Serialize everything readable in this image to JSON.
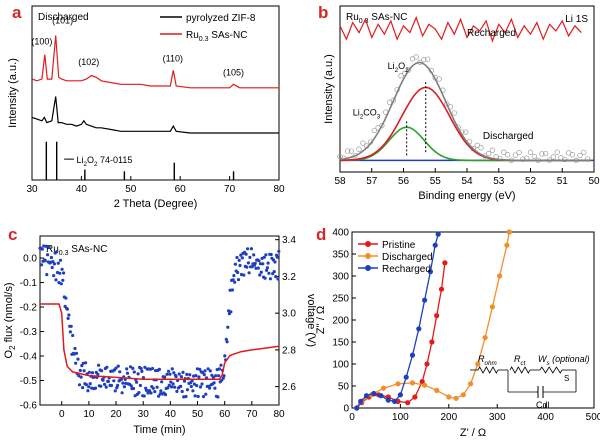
{
  "chart_data": [
    {
      "panel": "a",
      "type": "line",
      "xlabel": "2 Theta (Degree)",
      "ylabel": "Intensity (a.u.)",
      "xlim": [
        30,
        80
      ],
      "xticks": [
        30,
        40,
        50,
        60,
        70,
        80
      ],
      "corner_label": "Discharged",
      "series": [
        {
          "name": "pyrolyzed ZIF-8",
          "color": "#000000",
          "points": [
            [
              30,
              0.36
            ],
            [
              31,
              0.35
            ],
            [
              32,
              0.34
            ],
            [
              32.5,
              0.36
            ],
            [
              33,
              0.33
            ],
            [
              34,
              0.34
            ],
            [
              34.8,
              0.48
            ],
            [
              35.3,
              0.33
            ],
            [
              36,
              0.33
            ],
            [
              37,
              0.32
            ],
            [
              38,
              0.32
            ],
            [
              39,
              0.31
            ],
            [
              40,
              0.32
            ],
            [
              40.5,
              0.34
            ],
            [
              41,
              0.32
            ],
            [
              42,
              0.31
            ],
            [
              43,
              0.3
            ],
            [
              44,
              0.3
            ],
            [
              46,
              0.29
            ],
            [
              48,
              0.28
            ],
            [
              50,
              0.28
            ],
            [
              52,
              0.28
            ],
            [
              54,
              0.28
            ],
            [
              56,
              0.28
            ],
            [
              58,
              0.28
            ],
            [
              58.6,
              0.31
            ],
            [
              59.2,
              0.28
            ],
            [
              62,
              0.27
            ],
            [
              65,
              0.27
            ],
            [
              68,
              0.27
            ],
            [
              70,
              0.27
            ],
            [
              72,
              0.27
            ],
            [
              75,
              0.27
            ],
            [
              78,
              0.27
            ],
            [
              80,
              0.27
            ]
          ]
        },
        {
          "name": "Ru0.3 SAs-NC",
          "color": "#e31a1c",
          "points": [
            [
              30,
              0.58
            ],
            [
              31,
              0.57
            ],
            [
              32,
              0.58
            ],
            [
              32.6,
              0.72
            ],
            [
              33.1,
              0.58
            ],
            [
              34,
              0.58
            ],
            [
              34.8,
              0.83
            ],
            [
              35.4,
              0.59
            ],
            [
              36,
              0.58
            ],
            [
              37,
              0.57
            ],
            [
              38,
              0.57
            ],
            [
              39,
              0.57
            ],
            [
              40,
              0.57
            ],
            [
              41,
              0.58
            ],
            [
              42,
              0.6
            ],
            [
              43,
              0.59
            ],
            [
              44,
              0.57
            ],
            [
              46,
              0.56
            ],
            [
              48,
              0.55
            ],
            [
              50,
              0.55
            ],
            [
              52,
              0.55
            ],
            [
              54,
              0.54
            ],
            [
              56,
              0.54
            ],
            [
              58,
              0.54
            ],
            [
              58.6,
              0.63
            ],
            [
              59.2,
              0.54
            ],
            [
              62,
              0.53
            ],
            [
              65,
              0.53
            ],
            [
              68,
              0.53
            ],
            [
              70,
              0.53
            ],
            [
              70.8,
              0.55
            ],
            [
              72,
              0.53
            ],
            [
              75,
              0.53
            ],
            [
              78,
              0.53
            ],
            [
              80,
              0.53
            ]
          ]
        }
      ],
      "reference": {
        "name": "Li2O2 74-0115",
        "sticks": [
          [
            32.9,
            0.22
          ],
          [
            35.0,
            0.22
          ],
          [
            40.7,
            0.06
          ],
          [
            48.7,
            0.05
          ],
          [
            58.8,
            0.1
          ],
          [
            70.8,
            0.05
          ]
        ]
      },
      "peak_labels": [
        {
          "text": "(100)",
          "x": 32.0,
          "y": 0.78
        },
        {
          "text": "(101)",
          "x": 36.2,
          "y": 0.9
        },
        {
          "text": "(102)",
          "x": 41.5,
          "y": 0.66
        },
        {
          "text": "(110)",
          "x": 58.5,
          "y": 0.68
        },
        {
          "text": "(105)",
          "x": 70.8,
          "y": 0.6
        }
      ]
    },
    {
      "panel": "b",
      "type": "line",
      "xlabel": "Binding energy (eV)",
      "ylabel": "Intensity (a.u.)",
      "xlim": [
        58,
        50
      ],
      "xticks": [
        58,
        57,
        56,
        55,
        54,
        53,
        52,
        51,
        50
      ],
      "corner_label": "Ru0.3 SAs-NC",
      "corner_label_right": "Li 1S",
      "series_labels": [
        "Recharged",
        "Discharged"
      ],
      "component_labels": [
        "Li2O2",
        "Li2CO3"
      ],
      "series": [
        {
          "name": "Recharged",
          "color": "#e31a1c",
          "points": [
            [
              58,
              0.88
            ],
            [
              57.8,
              0.8
            ],
            [
              57.6,
              0.9
            ],
            [
              57.4,
              0.84
            ],
            [
              57.2,
              0.92
            ],
            [
              57.0,
              0.81
            ],
            [
              56.8,
              0.89
            ],
            [
              56.6,
              0.83
            ],
            [
              56.4,
              0.91
            ],
            [
              56.2,
              0.8
            ],
            [
              56.0,
              0.88
            ],
            [
              55.8,
              0.84
            ],
            [
              55.6,
              0.93
            ],
            [
              55.4,
              0.82
            ],
            [
              55.2,
              0.89
            ],
            [
              55.0,
              0.86
            ],
            [
              54.8,
              0.8
            ],
            [
              54.6,
              0.9
            ],
            [
              54.4,
              0.83
            ],
            [
              54.2,
              0.92
            ],
            [
              54.0,
              0.81
            ],
            [
              53.8,
              0.88
            ],
            [
              53.6,
              0.85
            ],
            [
              53.4,
              0.91
            ],
            [
              53.2,
              0.79
            ],
            [
              53.0,
              0.89
            ],
            [
              52.8,
              0.84
            ],
            [
              52.6,
              0.92
            ],
            [
              52.4,
              0.81
            ],
            [
              52.2,
              0.88
            ],
            [
              52.0,
              0.83
            ],
            [
              51.8,
              0.9
            ],
            [
              51.6,
              0.8
            ],
            [
              51.4,
              0.89
            ],
            [
              51.2,
              0.85
            ],
            [
              51.0,
              0.91
            ],
            [
              50.8,
              0.82
            ],
            [
              50.6,
              0.88
            ],
            [
              50.4,
              0.84
            ]
          ]
        },
        {
          "name": "Li2O2",
          "color": "#e31a1c",
          "center": 55.3,
          "height": 0.44,
          "width": 0.75
        },
        {
          "name": "Li2CO3",
          "color": "#2ca02c",
          "center": 55.9,
          "height": 0.2,
          "width": 0.55
        },
        {
          "name": "Envelope",
          "color": "#7f7f7f",
          "center": 55.5,
          "height": 0.59,
          "width": 0.82
        },
        {
          "name": "Background",
          "color": "#1f3fbf",
          "baseline": 0.07
        }
      ]
    },
    {
      "panel": "c",
      "type": "line",
      "xlabel": "Time (min)",
      "ylabel": "O2 flux (nmol/s)",
      "ylabel_right": "voltage (V)",
      "xlim": [
        -8,
        80
      ],
      "ylim": [
        -0.6,
        0.09
      ],
      "ylim_right": [
        2.5,
        3.42
      ],
      "xticks": [
        0,
        10,
        20,
        30,
        40,
        50,
        60,
        70,
        80
      ],
      "yticks": [
        0.0,
        -0.1,
        -0.2,
        -0.3,
        -0.4,
        -0.5,
        -0.6
      ],
      "yticks_right": [
        2.6,
        2.8,
        3.0,
        3.2,
        3.4
      ],
      "corner_label": "Ru0.3 SAs-NC",
      "series": [
        {
          "name": "O2 flux",
          "color": "#1f3fbf",
          "axis": "left",
          "points": [
            [
              -8,
              0.03
            ],
            [
              -5,
              0.02
            ],
            [
              -2,
              0.0
            ],
            [
              0,
              -0.03
            ],
            [
              2,
              -0.18
            ],
            [
              4,
              -0.33
            ],
            [
              6,
              -0.42
            ],
            [
              8,
              -0.45
            ],
            [
              15,
              -0.46
            ],
            [
              25,
              -0.47
            ],
            [
              35,
              -0.48
            ],
            [
              45,
              -0.48
            ],
            [
              55,
              -0.48
            ],
            [
              58,
              -0.48
            ],
            [
              60,
              -0.4
            ],
            [
              62,
              -0.15
            ],
            [
              64,
              -0.02
            ],
            [
              66,
              0.01
            ],
            [
              70,
              0.01
            ],
            [
              75,
              0.0
            ],
            [
              80,
              0.0
            ]
          ]
        },
        {
          "name": "voltage",
          "color": "#e31a1c",
          "axis": "right",
          "points": [
            [
              -8,
              3.05
            ],
            [
              -1,
              3.05
            ],
            [
              0,
              3.0
            ],
            [
              0.8,
              2.8
            ],
            [
              2,
              2.71
            ],
            [
              4,
              2.68
            ],
            [
              10,
              2.66
            ],
            [
              20,
              2.65
            ],
            [
              30,
              2.64
            ],
            [
              40,
              2.64
            ],
            [
              50,
              2.64
            ],
            [
              58,
              2.64
            ],
            [
              59,
              2.66
            ],
            [
              60,
              2.73
            ],
            [
              62,
              2.77
            ],
            [
              66,
              2.79
            ],
            [
              70,
              2.8
            ],
            [
              75,
              2.81
            ],
            [
              80,
              2.82
            ]
          ]
        }
      ]
    },
    {
      "panel": "d",
      "type": "scatter",
      "xlabel": "Z' / Ω",
      "ylabel": "Z'' / Ω",
      "xlim": [
        0,
        500
      ],
      "ylim": [
        0,
        400
      ],
      "xticks": [
        0,
        100,
        200,
        300,
        400,
        500
      ],
      "yticks": [
        0,
        50,
        100,
        150,
        200,
        250,
        300,
        350,
        400
      ],
      "circuit_labels": [
        "Rohm",
        "Rct",
        "Ws (optional)",
        "S",
        "Cdl"
      ],
      "series": [
        {
          "name": "Pristine",
          "color": "#e31a1c",
          "points": [
            [
              10,
              0
            ],
            [
              20,
              12
            ],
            [
              35,
              25
            ],
            [
              55,
              30
            ],
            [
              75,
              25
            ],
            [
              95,
              15
            ],
            [
              115,
              12
            ],
            [
              130,
              25
            ],
            [
              145,
              60
            ],
            [
              155,
              100
            ],
            [
              165,
              150
            ],
            [
              175,
              210
            ],
            [
              185,
              270
            ],
            [
              192,
              330
            ]
          ]
        },
        {
          "name": "Discharged",
          "color": "#f28e2b",
          "points": [
            [
              10,
              0
            ],
            [
              20,
              15
            ],
            [
              40,
              30
            ],
            [
              65,
              45
            ],
            [
              95,
              55
            ],
            [
              125,
              57
            ],
            [
              150,
              52
            ],
            [
              175,
              40
            ],
            [
              200,
              25
            ],
            [
              215,
              22
            ],
            [
              230,
              30
            ],
            [
              245,
              55
            ],
            [
              260,
              100
            ],
            [
              275,
              160
            ],
            [
              290,
              230
            ],
            [
              305,
              300
            ],
            [
              320,
              370
            ],
            [
              325,
              400
            ]
          ]
        },
        {
          "name": "Recharged",
          "color": "#1f3fbf",
          "points": [
            [
              10,
              0
            ],
            [
              18,
              15
            ],
            [
              30,
              28
            ],
            [
              45,
              33
            ],
            [
              60,
              28
            ],
            [
              75,
              18
            ],
            [
              88,
              15
            ],
            [
              100,
              30
            ],
            [
              112,
              70
            ],
            [
              125,
              120
            ],
            [
              138,
              180
            ],
            [
              150,
              245
            ],
            [
              162,
              310
            ],
            [
              172,
              370
            ],
            [
              178,
              395
            ]
          ]
        }
      ]
    }
  ],
  "panels": [
    {
      "letter": "a"
    },
    {
      "letter": "b"
    },
    {
      "letter": "c"
    },
    {
      "letter": "d"
    }
  ]
}
